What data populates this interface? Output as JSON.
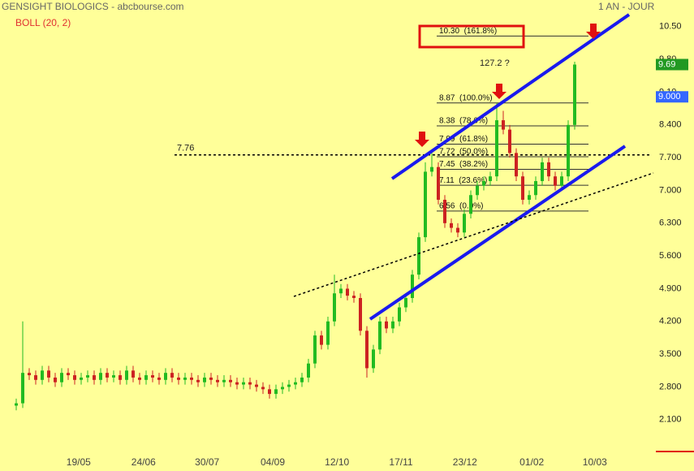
{
  "chart_data": {
    "type": "candlestick",
    "title": "GENSIGHT BIOLOGICS - abcbourse.com",
    "subtitle": "1 AN - JOUR",
    "indicator": "BOLL (20, 2)",
    "up_color": "#22bb22",
    "down_color": "#cc2222",
    "x": [
      0,
      1,
      2,
      3,
      4,
      5,
      6,
      7,
      8,
      9,
      10,
      11,
      12,
      13,
      14,
      15,
      16,
      17,
      18,
      19,
      20,
      21,
      22,
      23,
      24,
      25,
      26,
      27,
      28,
      29,
      30,
      31,
      32,
      33,
      34,
      35,
      36,
      37,
      38,
      39,
      40,
      41,
      42,
      43,
      44,
      45,
      46,
      47,
      48,
      49,
      50,
      51,
      52,
      53,
      54,
      55,
      56,
      57,
      58,
      59,
      60,
      61,
      62,
      63,
      64,
      65,
      66,
      67,
      68,
      69,
      70,
      71,
      72,
      73,
      74,
      75,
      76,
      77,
      78,
      79,
      80,
      81,
      82,
      83,
      84,
      85,
      86
    ],
    "open": [
      2.4,
      2.45,
      3.1,
      3.05,
      2.95,
      3.15,
      3.0,
      2.9,
      3.1,
      3.05,
      2.95,
      3.0,
      3.05,
      2.95,
      3.1,
      3.0,
      3.05,
      2.95,
      3.15,
      3.0,
      2.95,
      3.05,
      3.0,
      2.95,
      3.1,
      3.0,
      2.95,
      3.0,
      2.95,
      2.9,
      3.0,
      2.95,
      2.9,
      2.95,
      2.9,
      2.85,
      2.9,
      2.85,
      2.8,
      2.75,
      2.65,
      2.75,
      2.8,
      2.85,
      2.9,
      3.0,
      3.3,
      3.9,
      3.7,
      4.2,
      4.8,
      4.9,
      4.75,
      4.7,
      4.0,
      3.2,
      3.6,
      4.2,
      4.05,
      4.2,
      4.5,
      4.7,
      5.2,
      6.0,
      7.4,
      7.5,
      6.8,
      6.3,
      6.2,
      6.1,
      6.5,
      6.9,
      7.1,
      7.2,
      7.3,
      8.5,
      8.3,
      7.8,
      7.3,
      6.8,
      6.9,
      7.2,
      7.6,
      7.3,
      7.1,
      7.3,
      8.4
    ],
    "high": [
      2.55,
      4.2,
      3.2,
      3.15,
      3.25,
      3.25,
      3.1,
      3.2,
      3.2,
      3.15,
      3.1,
      3.15,
      3.15,
      3.2,
      3.2,
      3.15,
      3.15,
      3.25,
      3.25,
      3.1,
      3.15,
      3.15,
      3.1,
      3.2,
      3.2,
      3.1,
      3.1,
      3.1,
      3.05,
      3.1,
      3.1,
      3.05,
      3.05,
      3.05,
      3.0,
      3.0,
      3.0,
      2.95,
      2.9,
      2.85,
      2.85,
      2.9,
      2.95,
      3.0,
      3.1,
      3.4,
      4.0,
      4.0,
      4.3,
      5.2,
      5.0,
      5.0,
      4.85,
      4.8,
      4.1,
      3.7,
      4.3,
      4.3,
      4.3,
      4.6,
      4.8,
      5.3,
      6.1,
      7.6,
      7.8,
      7.6,
      6.9,
      6.4,
      6.3,
      6.6,
      7.0,
      7.2,
      7.3,
      7.4,
      8.87,
      8.7,
      8.4,
      7.9,
      7.4,
      7.0,
      7.3,
      7.7,
      7.7,
      7.4,
      7.4,
      8.5,
      9.75
    ],
    "low": [
      2.3,
      2.35,
      2.95,
      2.85,
      2.85,
      2.9,
      2.8,
      2.8,
      2.95,
      2.85,
      2.85,
      2.9,
      2.85,
      2.85,
      2.9,
      2.9,
      2.85,
      2.85,
      2.9,
      2.85,
      2.85,
      2.9,
      2.85,
      2.85,
      2.9,
      2.85,
      2.85,
      2.85,
      2.8,
      2.8,
      2.85,
      2.8,
      2.8,
      2.8,
      2.75,
      2.75,
      2.75,
      2.7,
      2.65,
      2.55,
      2.55,
      2.65,
      2.7,
      2.75,
      2.8,
      2.9,
      3.2,
      3.6,
      3.6,
      4.1,
      4.7,
      4.65,
      4.6,
      3.9,
      3.0,
      3.1,
      3.5,
      3.95,
      3.95,
      4.1,
      4.4,
      4.6,
      5.1,
      5.9,
      7.3,
      6.7,
      6.2,
      6.1,
      6.0,
      6.0,
      6.4,
      6.8,
      7.0,
      7.1,
      7.2,
      8.2,
      7.7,
      7.2,
      6.7,
      6.7,
      6.8,
      7.1,
      7.2,
      7.0,
      7.0,
      7.2,
      8.3
    ],
    "close": [
      2.45,
      3.1,
      3.05,
      2.95,
      3.15,
      3.0,
      2.9,
      3.1,
      3.05,
      2.95,
      3.0,
      3.05,
      2.95,
      3.1,
      3.0,
      3.05,
      2.95,
      3.15,
      3.0,
      2.95,
      3.05,
      3.0,
      2.95,
      3.1,
      3.0,
      2.95,
      3.0,
      2.95,
      2.9,
      3.0,
      2.95,
      2.9,
      2.95,
      2.9,
      2.85,
      2.9,
      2.85,
      2.8,
      2.75,
      2.65,
      2.75,
      2.8,
      2.85,
      2.9,
      3.0,
      3.3,
      3.9,
      3.7,
      4.2,
      4.8,
      4.9,
      4.75,
      4.7,
      4.0,
      3.2,
      3.6,
      4.2,
      4.05,
      4.2,
      4.5,
      4.7,
      5.2,
      6.0,
      7.4,
      7.5,
      6.8,
      6.3,
      6.2,
      6.1,
      6.5,
      6.9,
      7.1,
      7.2,
      7.3,
      8.5,
      8.3,
      7.8,
      7.3,
      6.8,
      6.9,
      7.2,
      7.6,
      7.3,
      7.1,
      7.3,
      8.4,
      9.69
    ],
    "xlim": [
      -2.5,
      97.5
    ],
    "xticks": [
      {
        "value": 9.6,
        "label": "19/05"
      },
      {
        "value": 19.6,
        "label": "24/06"
      },
      {
        "value": 29.4,
        "label": "30/07"
      },
      {
        "value": 39.5,
        "label": "04/09"
      },
      {
        "value": 49.4,
        "label": "12/10"
      },
      {
        "value": 59.25,
        "label": "17/11"
      },
      {
        "value": 69.1,
        "label": "23/12"
      },
      {
        "value": 79.4,
        "label": "01/02"
      },
      {
        "value": 89.1,
        "label": "10/03"
      }
    ],
    "ylim": [
      1.35,
      11.07
    ],
    "yticks": [
      {
        "value": 10.5,
        "label": "10.50"
      },
      {
        "value": 9.8,
        "label": "9.80"
      },
      {
        "value": 9.1,
        "label": "9.10"
      },
      {
        "value": 8.4,
        "label": "8.400"
      },
      {
        "value": 7.7,
        "label": "7.700"
      },
      {
        "value": 7,
        "label": "7.000"
      },
      {
        "value": 6.3,
        "label": "6.300"
      },
      {
        "value": 5.6,
        "label": "5.600"
      },
      {
        "value": 4.9,
        "label": "4.900"
      },
      {
        "value": 4.2,
        "label": "4.200"
      },
      {
        "value": 3.5,
        "label": "3.500"
      },
      {
        "value": 2.8,
        "label": "2.800"
      },
      {
        "value": 2.1,
        "label": "2.100"
      }
    ],
    "last_price": 9.69,
    "band_price": {
      "value": 9,
      "label": "9.000"
    },
    "reference_line": {
      "value": 7.76,
      "label": "7.76"
    },
    "fib_levels": [
      {
        "value": 10.3,
        "label": "10.30  (161.8%)"
      },
      {
        "value": 8.87,
        "label": "8.87  (100.0%)"
      },
      {
        "value": 8.38,
        "label": "8.38  (78.6%)"
      },
      {
        "value": 7.99,
        "label": "7.99  (61.8%)"
      },
      {
        "value": 7.72,
        "label": "7.72  (50.0%)"
      },
      {
        "value": 7.45,
        "label": "7.45  (38.2%)"
      },
      {
        "value": 7.11,
        "label": "7.11  (23.6%)"
      },
      {
        "value": 6.56,
        "label": "6.56  (0.0%)"
      }
    ],
    "note": "127.2 ?"
  }
}
